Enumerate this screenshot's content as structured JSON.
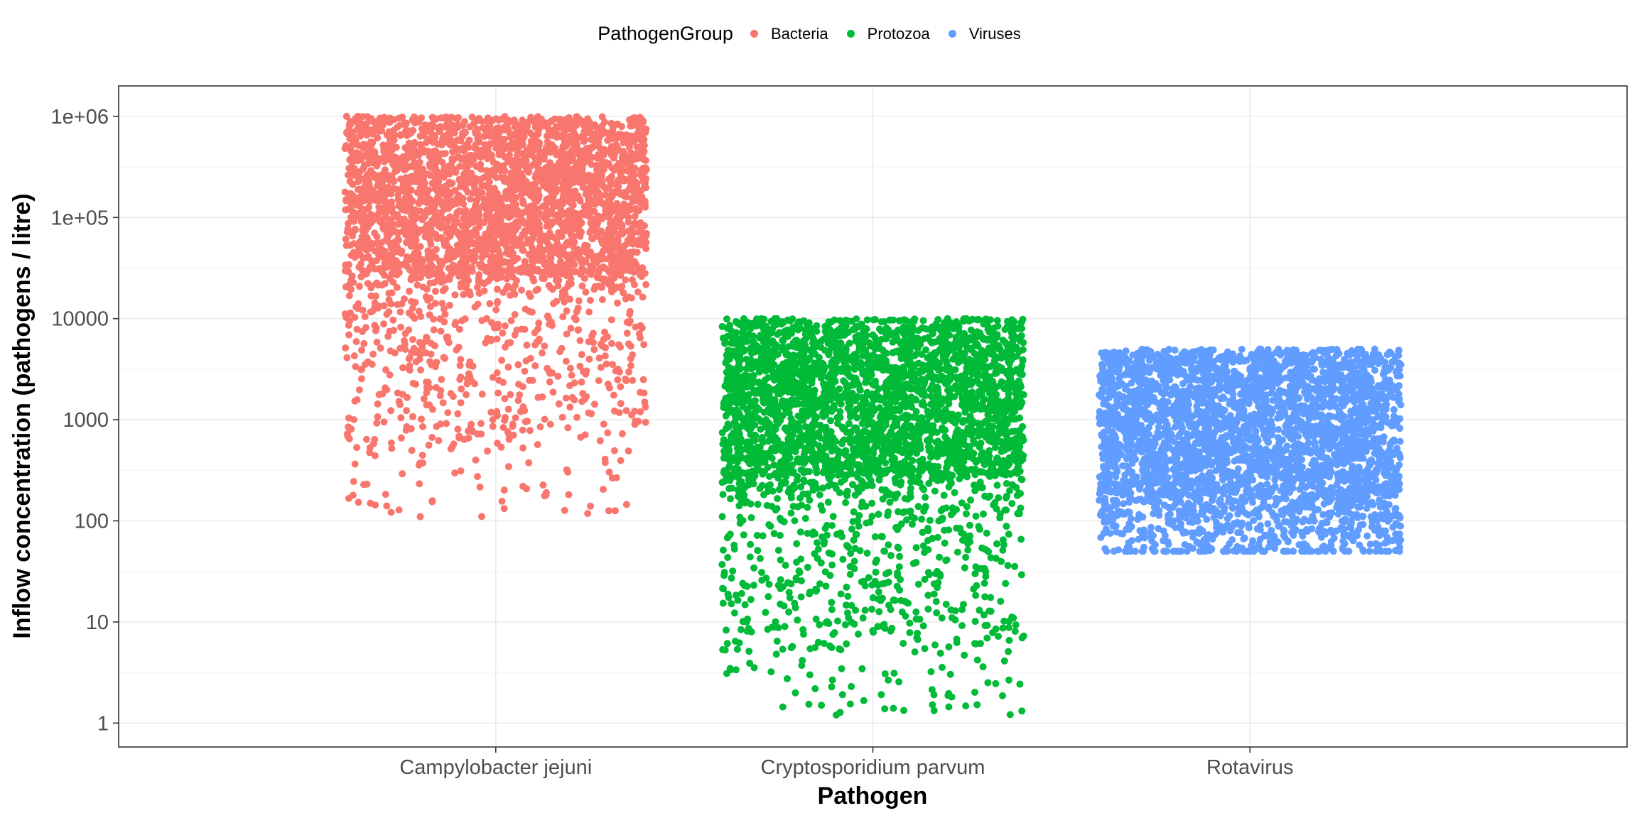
{
  "chart_data": {
    "type": "scatter",
    "title": "",
    "xlabel": "Pathogen",
    "ylabel": "Inflow concentration (pathogens / litre)",
    "y_scale": "log10",
    "ylim": [
      0.58,
      2000000
    ],
    "yticks": [
      1,
      10,
      100,
      1000,
      10000,
      100000,
      1000000
    ],
    "ytick_labels": [
      "1",
      "10",
      "100",
      "1000",
      "10000",
      "1e+05",
      "1e+06"
    ],
    "categories": [
      "Campylobacter jejuni",
      "Cryptosporidium parvum",
      "Rotavirus"
    ],
    "grid": true,
    "legend": {
      "title": "PathogenGroup",
      "placement": "top",
      "entries": [
        {
          "name": "Bacteria",
          "color": "#F8766D"
        },
        {
          "name": "Protozoa",
          "color": "#00BA38"
        },
        {
          "name": "Viruses",
          "color": "#619CFF"
        }
      ]
    },
    "series": [
      {
        "name": "Bacteria",
        "category": "Campylobacter jejuni",
        "color": "#F8766D",
        "min": 110,
        "max": 1000000,
        "dense_min": 30000,
        "sparse_to": 500
      },
      {
        "name": "Protozoa",
        "category": "Cryptosporidium parvum",
        "color": "#00BA38",
        "min": 1.2,
        "max": 10000,
        "dense_min": 300,
        "sparse_to": 5
      },
      {
        "name": "Viruses",
        "category": "Rotavirus",
        "color": "#619CFF",
        "min": 50,
        "max": 5000,
        "dense_min": 200,
        "sparse_to": 50
      }
    ]
  }
}
